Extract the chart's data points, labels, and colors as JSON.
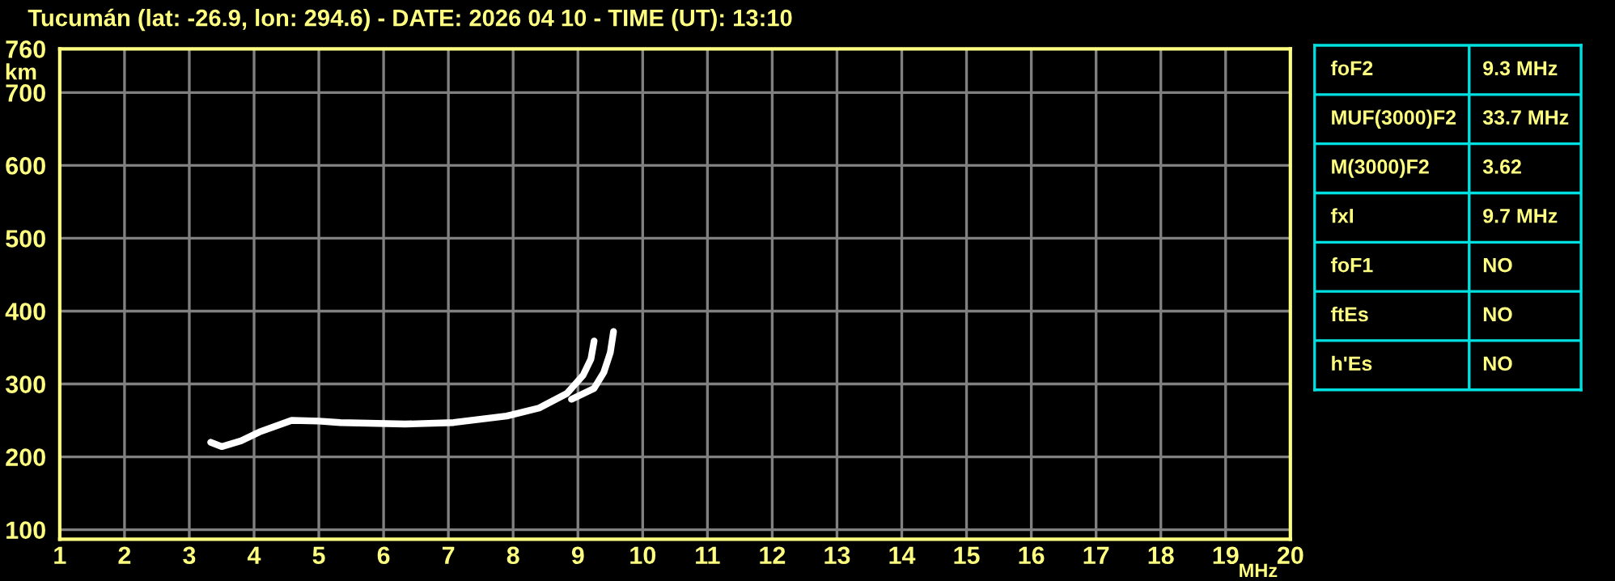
{
  "chart_data": [
    {
      "type": "line",
      "title": "Tucumán (lat: -26.9, lon: 294.6) - DATE: 2026 04 10 - TIME (UT): 13:10",
      "xlabel": "MHz",
      "ylabel": "km",
      "series": [
        {
          "color": "#ffffff",
          "x": [
            3.33,
            3.5,
            3.8,
            4.08,
            4.58,
            5.0,
            5.33,
            6.33,
            7.08,
            7.9,
            8.4,
            8.83,
            9.08,
            9.2,
            9.25
          ],
          "values": [
            220,
            214,
            222,
            234,
            250,
            249,
            247,
            245,
            247,
            256,
            267,
            287,
            312,
            334,
            359
          ]
        },
        {
          "color": "#ffffff",
          "x": [
            8.9,
            9.25,
            9.4,
            9.5,
            9.55
          ],
          "values": [
            279,
            294,
            316,
            343,
            372
          ]
        }
      ],
      "marker": "none",
      "line_style": "solid",
      "xlim": [
        1,
        20
      ],
      "xticks": [
        1,
        2,
        3,
        4,
        5,
        6,
        7,
        8,
        9,
        10,
        11,
        12,
        13,
        14,
        15,
        16,
        17,
        18,
        19,
        20
      ],
      "ylim": [
        87,
        760
      ],
      "yticks": [
        100,
        200,
        300,
        400,
        500,
        600,
        700,
        760
      ],
      "grid": true,
      "legend": false
    },
    {
      "type": "other",
      "annotations": [
        "foF2",
        "9.3 MHz",
        "MUF(3000)F2",
        "33.7 MHz",
        "M(3000)F2",
        "3.62",
        "fxI",
        "9.7 MHz",
        "foF1",
        "NO",
        "ftEs",
        "NO",
        "h'Es",
        "NO"
      ]
    }
  ]
}
